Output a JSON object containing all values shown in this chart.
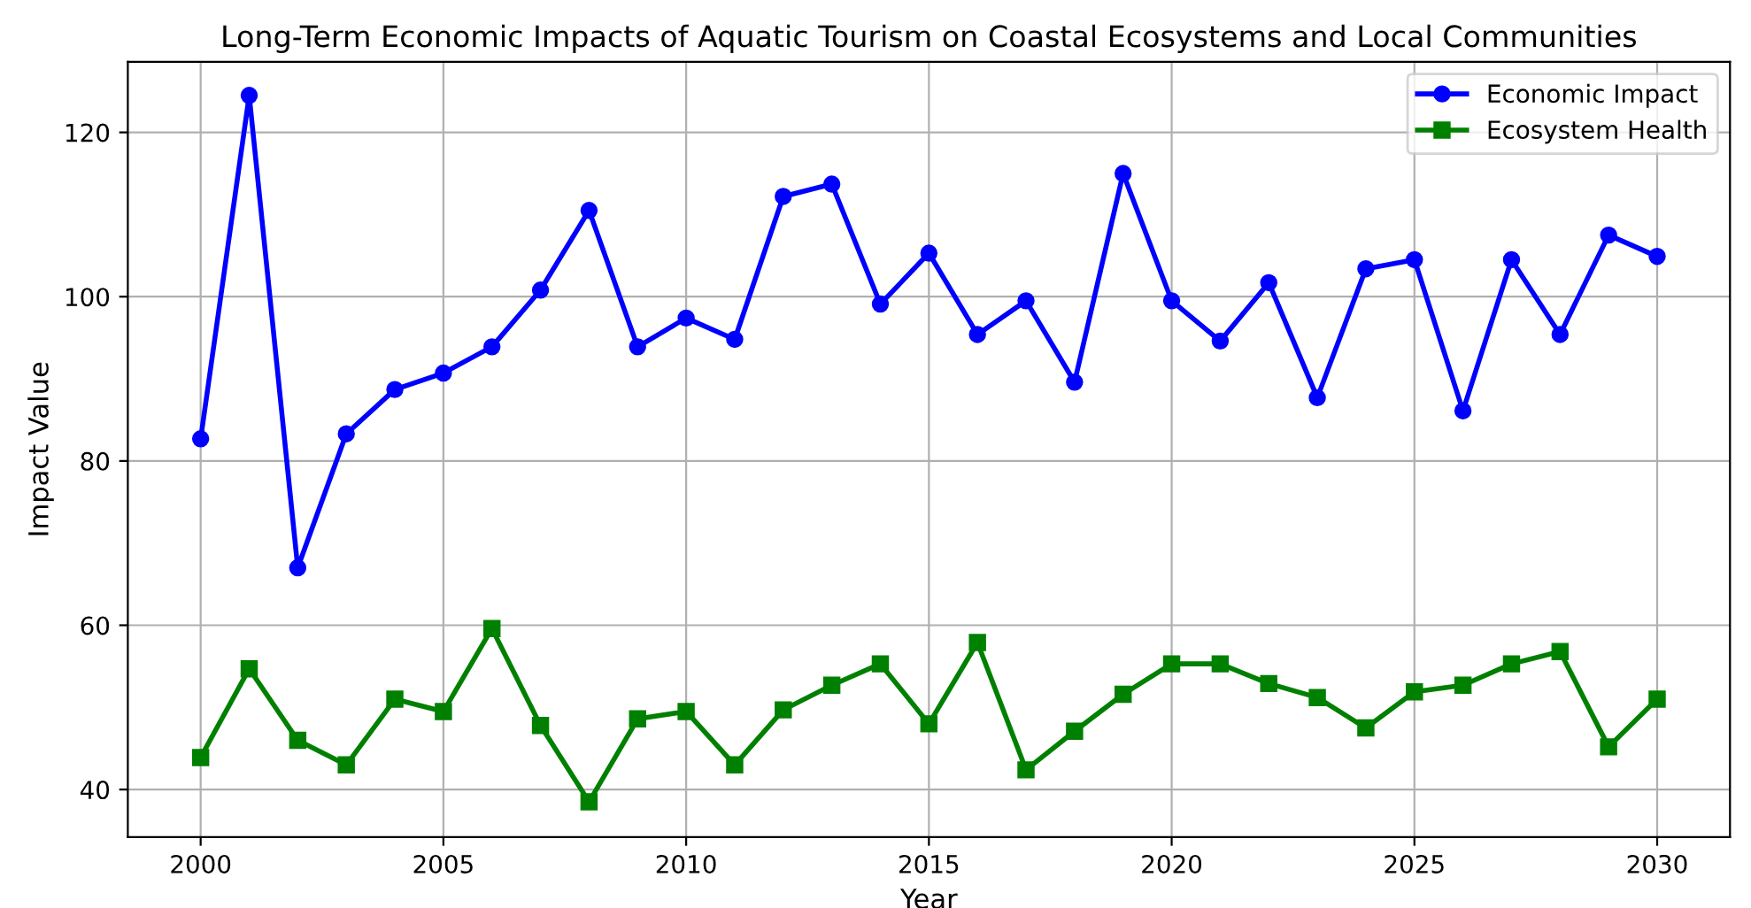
{
  "chart_data": {
    "type": "line",
    "title": "Long-Term Economic Impacts of Aquatic Tourism on Coastal Ecosystems and Local Communities",
    "xlabel": "Year",
    "ylabel": "Impact Value",
    "x": [
      2000,
      2001,
      2002,
      2003,
      2004,
      2005,
      2006,
      2007,
      2008,
      2009,
      2010,
      2011,
      2012,
      2013,
      2014,
      2015,
      2016,
      2017,
      2018,
      2019,
      2020,
      2021,
      2022,
      2023,
      2024,
      2025,
      2026,
      2027,
      2028,
      2029,
      2030
    ],
    "series": [
      {
        "name": "Economic Impact",
        "color": "#0000ff",
        "marker": "circle",
        "values": [
          82.7,
          124.5,
          67.0,
          83.3,
          88.7,
          90.7,
          93.9,
          100.8,
          110.5,
          93.9,
          97.4,
          94.8,
          112.2,
          113.7,
          99.1,
          105.3,
          95.4,
          99.5,
          89.6,
          115.0,
          99.5,
          94.6,
          101.7,
          87.7,
          103.4,
          104.5,
          86.1,
          104.5,
          95.4,
          107.5,
          104.9
        ]
      },
      {
        "name": "Ecosystem Health",
        "color": "#008000",
        "marker": "square",
        "values": [
          43.9,
          54.7,
          46.0,
          43.0,
          51.0,
          49.5,
          59.6,
          47.8,
          38.5,
          48.6,
          49.5,
          43.0,
          49.7,
          52.7,
          55.3,
          48.0,
          57.9,
          42.4,
          47.1,
          51.6,
          55.3,
          55.3,
          52.9,
          51.2,
          47.5,
          51.9,
          52.7,
          55.3,
          56.8,
          45.2,
          51.0
        ]
      }
    ],
    "xlim": [
      1998.5,
      2031.5
    ],
    "xticks": [
      2000,
      2005,
      2010,
      2015,
      2020,
      2025,
      2030
    ],
    "ylim": [
      34.2,
      128.6
    ],
    "yticks": [
      40,
      60,
      80,
      100,
      120
    ],
    "grid": true,
    "legend": "top right",
    "line_style": "solid"
  }
}
